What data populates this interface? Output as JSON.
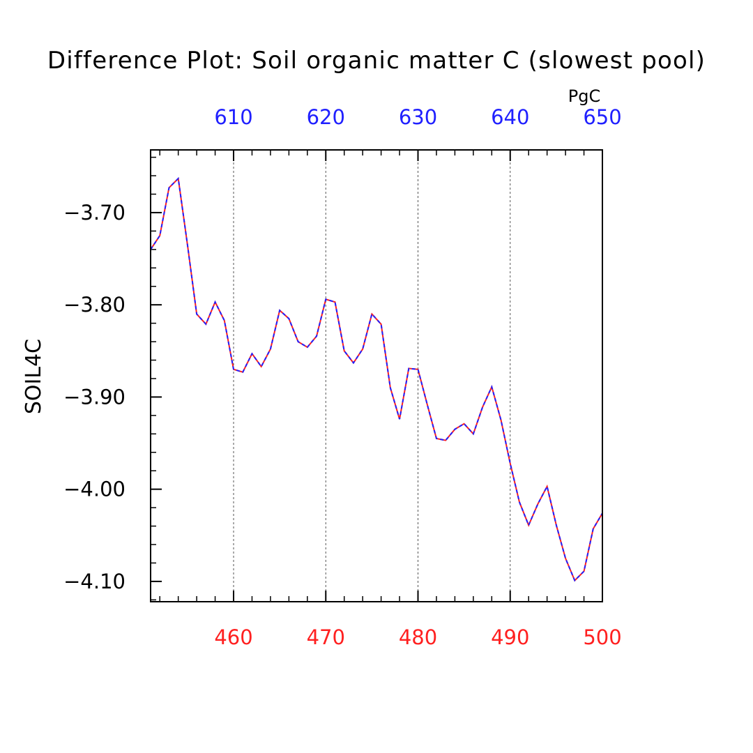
{
  "title": "Difference Plot: Soil organic matter C (slowest pool)",
  "colors": {
    "bottom_axis": "#ff2020",
    "top_axis": "#2020ff",
    "axis": "#000000",
    "grid": "#555555"
  },
  "chart_data": {
    "type": "line",
    "title": "Difference Plot: Soil organic matter C (slowest pool)",
    "ylabel": "SOIL4C",
    "top_axis_unit": "PgC",
    "xlim": [
      451,
      500
    ],
    "ylim": [
      -4.122,
      -3.632
    ],
    "top_xlim": [
      601,
      650
    ],
    "bottom_ticks": [
      "460",
      "470",
      "480",
      "490",
      "500"
    ],
    "top_ticks": [
      "610",
      "620",
      "630",
      "640",
      "650"
    ],
    "y_ticks": [
      "-3.70",
      "-3.80",
      "-3.90",
      "-4.00",
      "-4.10"
    ],
    "grid": "vertical dashed at major x ticks",
    "x": [
      451,
      452,
      453,
      454,
      455,
      456,
      457,
      458,
      459,
      460,
      461,
      462,
      463,
      464,
      465,
      466,
      467,
      468,
      469,
      470,
      471,
      472,
      473,
      474,
      475,
      476,
      477,
      478,
      479,
      480,
      481,
      482,
      483,
      484,
      485,
      486,
      487,
      488,
      489,
      490,
      491,
      492,
      493,
      494,
      495,
      496,
      497,
      498,
      499,
      500
    ],
    "series": [
      {
        "color": "#ff2020",
        "values": [
          -3.74,
          -3.725,
          -3.673,
          -3.663,
          -3.735,
          -3.81,
          -3.821,
          -3.797,
          -3.817,
          -3.87,
          -3.873,
          -3.853,
          -3.867,
          -3.848,
          -3.806,
          -3.815,
          -3.84,
          -3.846,
          -3.834,
          -3.794,
          -3.797,
          -3.85,
          -3.863,
          -3.848,
          -3.81,
          -3.821,
          -3.89,
          -3.924,
          -3.869,
          -3.87,
          -3.908,
          -3.945,
          -3.947,
          -3.935,
          -3.929,
          -3.94,
          -3.911,
          -3.889,
          -3.925,
          -3.972,
          -4.014,
          -4.039,
          -4.016,
          -3.997,
          -4.039,
          -4.075,
          -4.099,
          -4.089,
          -4.043,
          -4.026
        ]
      },
      {
        "color": "#2020ff",
        "values": [
          -3.74,
          -3.725,
          -3.673,
          -3.663,
          -3.735,
          -3.81,
          -3.821,
          -3.797,
          -3.817,
          -3.87,
          -3.873,
          -3.853,
          -3.867,
          -3.848,
          -3.806,
          -3.815,
          -3.84,
          -3.846,
          -3.834,
          -3.794,
          -3.797,
          -3.85,
          -3.863,
          -3.848,
          -3.81,
          -3.821,
          -3.89,
          -3.924,
          -3.869,
          -3.87,
          -3.908,
          -3.945,
          -3.947,
          -3.935,
          -3.929,
          -3.94,
          -3.911,
          -3.889,
          -3.925,
          -3.972,
          -4.014,
          -4.039,
          -4.016,
          -3.997,
          -4.039,
          -4.075,
          -4.099,
          -4.089,
          -4.043,
          -4.026
        ]
      }
    ]
  }
}
